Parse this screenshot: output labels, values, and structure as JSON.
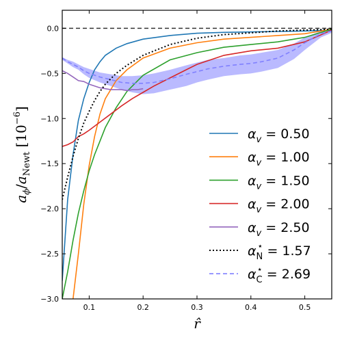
{
  "chart_data": {
    "type": "line",
    "xlabel": "r̂",
    "ylabel": "a_φ / a_Newt [10^-6]",
    "xlim": [
      0.05,
      0.55
    ],
    "ylim": [
      -3.0,
      0.2
    ],
    "xticks": [
      0.1,
      0.2,
      0.3,
      0.4,
      0.5
    ],
    "xtick_labels": [
      "0.1",
      "0.2",
      "0.3",
      "0.4",
      "0.5"
    ],
    "yticks": [
      0.0,
      -0.5,
      -1.0,
      -1.5,
      -2.0,
      -2.5,
      -3.0
    ],
    "ytick_labels": [
      "0.0",
      "−0.5",
      "−1.0",
      "−1.5",
      "−2.0",
      "−2.5",
      "−3.0"
    ],
    "reference_line": {
      "y": 0.0,
      "style": "dashed",
      "color": "#333333"
    },
    "legend_position": "lower-right",
    "series": [
      {
        "name": "α_v = 0.50",
        "legend_sym": "α",
        "legend_sub": "v",
        "legend_tail": " = 0.50",
        "style": "solid",
        "color": "#1f77b4",
        "x": [
          0.05,
          0.06,
          0.07,
          0.08,
          0.09,
          0.1,
          0.11,
          0.12,
          0.13,
          0.15,
          0.17,
          0.2,
          0.25,
          0.3,
          0.35,
          0.4,
          0.45,
          0.5,
          0.55
        ],
        "y": [
          -2.8,
          -1.9,
          -1.4,
          -1.02,
          -0.78,
          -0.6,
          -0.46,
          -0.37,
          -0.3,
          -0.22,
          -0.17,
          -0.12,
          -0.08,
          -0.055,
          -0.045,
          -0.04,
          -0.035,
          -0.03,
          -0.02
        ]
      },
      {
        "name": "α_v = 1.00",
        "legend_sym": "α",
        "legend_sub": "v",
        "legend_tail": " = 1.00",
        "style": "solid",
        "color": "#ff7f0e",
        "x": [
          0.07,
          0.08,
          0.09,
          0.1,
          0.11,
          0.12,
          0.13,
          0.15,
          0.17,
          0.2,
          0.25,
          0.3,
          0.35,
          0.4,
          0.45,
          0.5,
          0.55
        ],
        "y": [
          -3.0,
          -2.5,
          -1.95,
          -1.52,
          -1.2,
          -0.95,
          -0.78,
          -0.58,
          -0.46,
          -0.33,
          -0.22,
          -0.16,
          -0.12,
          -0.1,
          -0.08,
          -0.06,
          -0.01
        ]
      },
      {
        "name": "α_v = 1.50",
        "legend_sym": "α",
        "legend_sub": "v",
        "legend_tail": " = 1.50",
        "style": "solid",
        "color": "#2ca02c",
        "x": [
          0.05,
          0.06,
          0.07,
          0.08,
          0.09,
          0.1,
          0.11,
          0.12,
          0.13,
          0.15,
          0.17,
          0.2,
          0.25,
          0.3,
          0.35,
          0.4,
          0.45,
          0.5,
          0.55
        ],
        "y": [
          -3.0,
          -2.7,
          -2.35,
          -2.05,
          -1.8,
          -1.58,
          -1.4,
          -1.25,
          -1.1,
          -0.88,
          -0.7,
          -0.52,
          -0.35,
          -0.27,
          -0.21,
          -0.18,
          -0.15,
          -0.1,
          -0.01
        ]
      },
      {
        "name": "α_v = 2.00",
        "legend_sym": "α",
        "legend_sub": "v",
        "legend_tail": " = 2.00",
        "style": "solid",
        "color": "#d62728",
        "x": [
          0.05,
          0.06,
          0.07,
          0.08,
          0.09,
          0.1,
          0.12,
          0.14,
          0.16,
          0.18,
          0.2,
          0.22,
          0.25,
          0.28,
          0.3,
          0.35,
          0.4,
          0.45,
          0.5,
          0.55
        ],
        "y": [
          -1.31,
          -1.29,
          -1.26,
          -1.2,
          -1.17,
          -1.13,
          -1.04,
          -0.95,
          -0.86,
          -0.78,
          -0.71,
          -0.64,
          -0.55,
          -0.46,
          -0.4,
          -0.3,
          -0.25,
          -0.22,
          -0.15,
          -0.02
        ]
      },
      {
        "name": "α_v = 2.50",
        "legend_sym": "α",
        "legend_sub": "v",
        "legend_tail": " = 2.50",
        "style": "solid",
        "color": "#9467bd",
        "x": [
          0.05,
          0.06,
          0.07,
          0.08,
          0.09,
          0.1,
          0.11,
          0.12,
          0.13,
          0.14,
          0.15,
          0.16,
          0.17,
          0.18,
          0.19,
          0.2
        ],
        "y": [
          -0.47,
          -0.5,
          -0.54,
          -0.58,
          -0.59,
          -0.62,
          -0.64,
          -0.66,
          -0.67,
          -0.68,
          -0.68,
          -0.68,
          -0.69,
          -0.68,
          -0.68,
          -0.67
        ]
      },
      {
        "name": "α*_N = 1.57",
        "legend_sym": "α",
        "legend_sub": "N",
        "legend_sup": "⋆",
        "legend_tail": " = 1.57",
        "style": "dotted",
        "color": "#000000",
        "x": [
          0.05,
          0.06,
          0.07,
          0.08,
          0.09,
          0.1,
          0.11,
          0.12,
          0.13,
          0.15,
          0.17,
          0.2,
          0.25,
          0.3,
          0.35,
          0.4,
          0.45,
          0.5,
          0.55
        ],
        "y": [
          -1.9,
          -1.65,
          -1.42,
          -1.22,
          -1.05,
          -0.92,
          -0.8,
          -0.7,
          -0.62,
          -0.5,
          -0.41,
          -0.3,
          -0.18,
          -0.11,
          -0.07,
          -0.05,
          -0.03,
          -0.02,
          -0.01
        ]
      },
      {
        "name": "α*_C = 2.69",
        "legend_sym": "α",
        "legend_sub": "C",
        "legend_sup": "⋆",
        "legend_tail": " = 2.69",
        "style": "dashed",
        "color": "#8080ff",
        "x": [
          0.05,
          0.06,
          0.07,
          0.08,
          0.09,
          0.1,
          0.12,
          0.14,
          0.16,
          0.18,
          0.2,
          0.22,
          0.25,
          0.28,
          0.3,
          0.32,
          0.35,
          0.38,
          0.4,
          0.42,
          0.45,
          0.48,
          0.5,
          0.53,
          0.55
        ],
        "y": [
          -0.33,
          -0.37,
          -0.4,
          -0.43,
          -0.47,
          -0.5,
          -0.54,
          -0.57,
          -0.6,
          -0.61,
          -0.61,
          -0.6,
          -0.56,
          -0.51,
          -0.48,
          -0.45,
          -0.42,
          -0.4,
          -0.39,
          -0.37,
          -0.33,
          -0.24,
          -0.16,
          -0.06,
          -0.03
        ]
      }
    ],
    "band": {
      "color": "#6666ff",
      "opacity": 0.45,
      "x": [
        0.05,
        0.06,
        0.07,
        0.08,
        0.09,
        0.1,
        0.12,
        0.14,
        0.16,
        0.18,
        0.2,
        0.22,
        0.25,
        0.28,
        0.3,
        0.32,
        0.35,
        0.38,
        0.4,
        0.42,
        0.45,
        0.48,
        0.5,
        0.53,
        0.55
      ],
      "upper": [
        -0.32,
        -0.35,
        -0.37,
        -0.4,
        -0.43,
        -0.45,
        -0.49,
        -0.51,
        -0.53,
        -0.53,
        -0.52,
        -0.5,
        -0.46,
        -0.41,
        -0.38,
        -0.35,
        -0.33,
        -0.3,
        -0.29,
        -0.27,
        -0.24,
        -0.17,
        -0.1,
        -0.03,
        -0.01
      ],
      "lower": [
        -0.35,
        -0.39,
        -0.43,
        -0.46,
        -0.51,
        -0.55,
        -0.6,
        -0.64,
        -0.68,
        -0.71,
        -0.73,
        -0.72,
        -0.68,
        -0.64,
        -0.6,
        -0.57,
        -0.53,
        -0.51,
        -0.5,
        -0.48,
        -0.44,
        -0.34,
        -0.24,
        -0.1,
        -0.05
      ]
    }
  }
}
